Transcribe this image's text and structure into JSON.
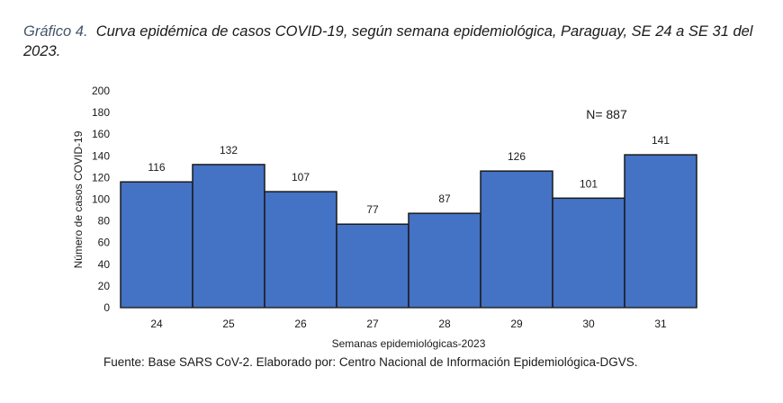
{
  "header": {
    "figure_label": "Gráfico 4.",
    "caption": "Curva epidémica de casos COVID-19, según semana epidemiológica, Paraguay, SE 24 a SE 31 del 2023."
  },
  "chart_data": {
    "type": "bar",
    "title": "Curva epidémica de casos COVID-19, según semana epidemiológica, Paraguay, SE 24 a SE 31 del 2023.",
    "categories": [
      "24",
      "25",
      "26",
      "27",
      "28",
      "29",
      "30",
      "31"
    ],
    "values": [
      116,
      132,
      107,
      77,
      87,
      126,
      101,
      141
    ],
    "xlabel": "Semanas epidemiológicas-2023",
    "ylabel": "Número de casos COVID-19",
    "ylim": [
      0,
      200
    ],
    "yticks": [
      0,
      20,
      40,
      60,
      80,
      100,
      120,
      140,
      160,
      180,
      200
    ],
    "grid": false,
    "bar_color": "#4472c4",
    "bar_edge_color": "#1a1a1a",
    "annotation": "N= 887",
    "annotation_position": "top-right"
  },
  "footer": {
    "source": "Fuente: Base SARS CoV-2. Elaborado por: Centro Nacional de Información Epidemiológica-DGVS."
  }
}
